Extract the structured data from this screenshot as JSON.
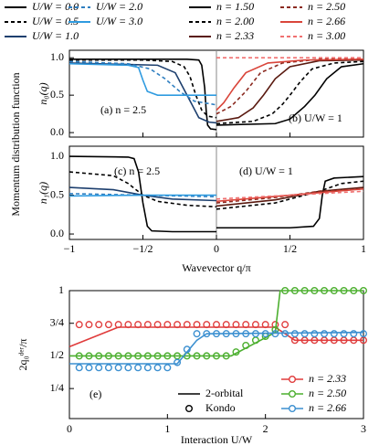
{
  "chart_data": [
    {
      "type": "line",
      "ylabel": "n₀(q)",
      "group_ylabel": "Momentum distribution function",
      "panel_labels": [
        "(a) n = 2.5",
        "(b) U/W = 1"
      ],
      "xlim": [
        -1,
        1
      ],
      "ylim": [
        -0.06,
        1.1
      ],
      "yticks": [
        {
          "value": 0,
          "label": "0.0"
        },
        {
          "value": 0.5,
          "label": "0.5"
        },
        {
          "value": 1,
          "label": "1.0"
        }
      ],
      "series": [
        {
          "name": "U/W = 0.0",
          "panel": "a",
          "color": "#000000",
          "dash": false,
          "x": [
            -1,
            -0.5,
            -0.2,
            -0.12,
            -0.1,
            -0.08,
            -0.07,
            -0.06,
            -0.04,
            0
          ],
          "values": [
            0.98,
            0.98,
            0.98,
            0.97,
            0.9,
            0.6,
            0.3,
            0.1,
            0.05,
            0.04
          ]
        },
        {
          "name": "U/W = 0.5",
          "panel": "a",
          "color": "#000000",
          "dash": true,
          "x": [
            -1,
            -0.5,
            -0.3,
            -0.22,
            -0.18,
            -0.14,
            -0.1,
            -0.06,
            0
          ],
          "values": [
            0.97,
            0.97,
            0.95,
            0.88,
            0.75,
            0.5,
            0.3,
            0.22,
            0.2
          ]
        },
        {
          "name": "U/W = 1.0",
          "panel": "a",
          "color": "#1d3f6e",
          "dash": false,
          "x": [
            -1,
            -0.4,
            -0.28,
            -0.2,
            -0.12,
            -0.05,
            0
          ],
          "values": [
            0.93,
            0.9,
            0.8,
            0.5,
            0.2,
            0.14,
            0.13
          ]
        },
        {
          "name": "U/W = 2.0",
          "panel": "a",
          "color": "#2f7fc1",
          "dash": true,
          "x": [
            -1,
            -0.6,
            -0.45,
            -0.35,
            -0.25,
            -0.15,
            0
          ],
          "values": [
            0.95,
            0.92,
            0.85,
            0.72,
            0.55,
            0.42,
            0.37
          ]
        },
        {
          "name": "U/W = 3.0",
          "panel": "a",
          "color": "#2f9be0",
          "dash": false,
          "x": [
            -1,
            -0.6,
            -0.53,
            -0.5,
            -0.47,
            -0.4,
            0
          ],
          "values": [
            0.92,
            0.9,
            0.87,
            0.7,
            0.55,
            0.5,
            0.5
          ]
        },
        {
          "name": "n = 1.50",
          "panel": "b",
          "color": "#000000",
          "dash": false,
          "x": [
            0,
            0.4,
            0.5,
            0.6,
            0.67,
            0.75,
            0.85,
            1
          ],
          "values": [
            0.1,
            0.12,
            0.18,
            0.35,
            0.5,
            0.72,
            0.88,
            0.92
          ]
        },
        {
          "name": "n = 2.00",
          "panel": "b",
          "color": "#000000",
          "dash": true,
          "x": [
            0,
            0.25,
            0.38,
            0.45,
            0.5,
            0.57,
            0.65,
            0.8,
            1
          ],
          "values": [
            0.12,
            0.15,
            0.25,
            0.38,
            0.5,
            0.68,
            0.85,
            0.93,
            0.95
          ]
        },
        {
          "name": "n = 2.33",
          "panel": "b",
          "color": "#5a1a10",
          "dash": false,
          "x": [
            0,
            0.15,
            0.25,
            0.32,
            0.4,
            0.5,
            0.7,
            1
          ],
          "values": [
            0.15,
            0.2,
            0.33,
            0.5,
            0.72,
            0.88,
            0.96,
            0.97
          ]
        },
        {
          "name": "n = 2.50",
          "panel": "b",
          "color": "#8b2a20",
          "dash": true,
          "x": [
            0,
            0.1,
            0.2,
            0.3,
            0.45,
            0.7,
            1
          ],
          "values": [
            0.25,
            0.35,
            0.55,
            0.8,
            0.93,
            0.98,
            0.99
          ]
        },
        {
          "name": "n = 2.66",
          "panel": "b",
          "color": "#d9453a",
          "dash": false,
          "x": [
            0,
            0.05,
            0.12,
            0.2,
            0.35,
            0.6,
            1
          ],
          "values": [
            0.3,
            0.4,
            0.6,
            0.8,
            0.93,
            0.97,
            0.98
          ]
        },
        {
          "name": "n = 3.00",
          "panel": "b",
          "color": "#f07070",
          "dash": true,
          "x": [
            0,
            1
          ],
          "values": [
            1.0,
            1.0
          ]
        }
      ]
    },
    {
      "type": "line",
      "ylabel": "n₁(q)",
      "xlabel": "Wavevector q/π",
      "panel_labels": [
        "(c) n = 2.5",
        "(d) U/W = 1"
      ],
      "xlim": [
        -1,
        1
      ],
      "ylim": [
        -0.07,
        1.13
      ],
      "xticks": [
        {
          "value": -1,
          "label": "−1"
        },
        {
          "value": -0.5,
          "label": "−1/2"
        },
        0,
        {
          "value": 0.5,
          "label": "1/2"
        },
        1
      ],
      "yticks": [
        {
          "value": 0,
          "label": "0.0"
        },
        {
          "value": 0.5,
          "label": "0.5"
        },
        {
          "value": 1,
          "label": "1.0"
        }
      ],
      "series": [
        {
          "panel": "a",
          "color": "#000000",
          "dash": false,
          "x": [
            -1,
            -0.6,
            -0.56,
            -0.53,
            -0.5,
            -0.47,
            -0.44,
            -0.3,
            0
          ],
          "values": [
            1.0,
            0.99,
            0.97,
            0.8,
            0.4,
            0.1,
            0.04,
            0.03,
            0.03
          ]
        },
        {
          "panel": "a",
          "color": "#000000",
          "dash": true,
          "x": [
            -1,
            -0.7,
            -0.6,
            -0.5,
            -0.4,
            -0.2,
            0
          ],
          "values": [
            0.8,
            0.75,
            0.65,
            0.5,
            0.42,
            0.37,
            0.35
          ]
        },
        {
          "panel": "a",
          "color": "#1d3f6e",
          "dash": false,
          "x": [
            -1,
            -0.7,
            -0.5,
            -0.3,
            0
          ],
          "values": [
            0.6,
            0.57,
            0.5,
            0.45,
            0.43
          ]
        },
        {
          "panel": "a",
          "color": "#2f7fc1",
          "dash": true,
          "x": [
            -1,
            -0.5,
            0
          ],
          "values": [
            0.52,
            0.5,
            0.48
          ]
        },
        {
          "panel": "a",
          "color": "#2f9be0",
          "dash": false,
          "x": [
            -1,
            -0.5,
            0
          ],
          "values": [
            0.49,
            0.5,
            0.5
          ]
        },
        {
          "panel": "b",
          "color": "#000000",
          "dash": false,
          "x": [
            0,
            0.5,
            0.66,
            0.7,
            0.72,
            0.74,
            0.8,
            1
          ],
          "values": [
            0.08,
            0.08,
            0.1,
            0.2,
            0.5,
            0.68,
            0.72,
            0.74
          ]
        },
        {
          "panel": "b",
          "color": "#000000",
          "dash": true,
          "x": [
            0,
            0.4,
            0.7,
            0.85,
            1
          ],
          "values": [
            0.32,
            0.4,
            0.55,
            0.65,
            0.68
          ]
        },
        {
          "panel": "b",
          "color": "#5a1a10",
          "dash": false,
          "x": [
            0,
            0.4,
            0.7,
            1
          ],
          "values": [
            0.36,
            0.44,
            0.55,
            0.6
          ]
        },
        {
          "panel": "b",
          "color": "#8b2a20",
          "dash": true,
          "x": [
            0,
            0.4,
            0.7,
            1
          ],
          "values": [
            0.4,
            0.47,
            0.55,
            0.58
          ]
        },
        {
          "panel": "b",
          "color": "#d9453a",
          "dash": false,
          "x": [
            0,
            0.5,
            1
          ],
          "values": [
            0.42,
            0.5,
            0.58
          ]
        },
        {
          "panel": "b",
          "color": "#f07070",
          "dash": true,
          "x": [
            0,
            0.5,
            1
          ],
          "values": [
            0.45,
            0.5,
            0.55
          ]
        }
      ]
    },
    {
      "type": "line_scatter",
      "ylabel": "2q₀ᵈᵉʳ/π",
      "xlabel": "Interaction U/W",
      "panel_label": "(e)",
      "style_legend": [
        "2-orbital",
        "Kondo"
      ],
      "xlim": [
        0,
        3
      ],
      "ylim": [
        0.02,
        1.0
      ],
      "xticks": [
        0,
        1,
        2,
        3
      ],
      "yticks": [
        {
          "value": 0.25,
          "label": "1/4"
        },
        {
          "value": 0.5,
          "label": "1/2"
        },
        {
          "value": 0.75,
          "label": "3/4"
        },
        1
      ],
      "kondo_x": [
        0.1,
        0.2,
        0.3,
        0.4,
        0.5,
        0.6,
        0.7,
        0.8,
        0.9,
        1.0,
        1.1,
        1.2,
        1.3,
        1.4,
        1.5,
        1.6,
        1.7,
        1.8,
        1.9,
        2.0,
        2.1,
        2.2,
        2.3,
        2.4,
        2.5,
        2.6,
        2.7,
        2.8,
        2.9,
        3.0
      ],
      "series": [
        {
          "name": "n = 2.33",
          "color": "#e03c3c",
          "x": [
            0,
            0.5,
            2.1,
            2.3,
            3
          ],
          "values": [
            0.57,
            0.72,
            0.72,
            0.62,
            0.62
          ],
          "kondo_values": [
            0.74,
            0.74,
            0.74,
            0.74,
            0.74,
            0.74,
            0.74,
            0.74,
            0.74,
            0.74,
            0.74,
            0.74,
            0.74,
            0.74,
            0.74,
            0.74,
            0.74,
            0.74,
            0.74,
            0.74,
            0.74,
            0.74,
            0.62,
            0.62,
            0.62,
            0.62,
            0.62,
            0.62,
            0.62,
            0.62
          ]
        },
        {
          "name": "n = 2.50",
          "color": "#4caf2f",
          "x": [
            0,
            1.65,
            1.95,
            2.1,
            2.15,
            3
          ],
          "values": [
            0.5,
            0.5,
            0.62,
            0.68,
            1.0,
            1.0
          ],
          "kondo_values": [
            0.5,
            0.5,
            0.5,
            0.5,
            0.5,
            0.5,
            0.5,
            0.5,
            0.5,
            0.5,
            0.5,
            0.5,
            0.5,
            0.5,
            0.5,
            0.5,
            0.53,
            0.58,
            0.62,
            0.65,
            0.7,
            1.0,
            1.0,
            1.0,
            1.0,
            1.0,
            1.0,
            1.0,
            1.0,
            1.0
          ]
        },
        {
          "name": "n = 2.66",
          "color": "#3b8fd0",
          "x": [
            0,
            1.1,
            1.3,
            1.4,
            3
          ],
          "values": [
            0.44,
            0.44,
            0.62,
            0.67,
            0.68
          ],
          "kondo_values": [
            0.41,
            0.41,
            0.41,
            0.41,
            0.41,
            0.41,
            0.41,
            0.41,
            0.41,
            0.41,
            0.45,
            0.55,
            0.67,
            0.67,
            0.67,
            0.67,
            0.67,
            0.67,
            0.67,
            0.67,
            0.67,
            0.67,
            0.67,
            0.67,
            0.67,
            0.67,
            0.67,
            0.67,
            0.67,
            0.67
          ]
        }
      ]
    }
  ]
}
